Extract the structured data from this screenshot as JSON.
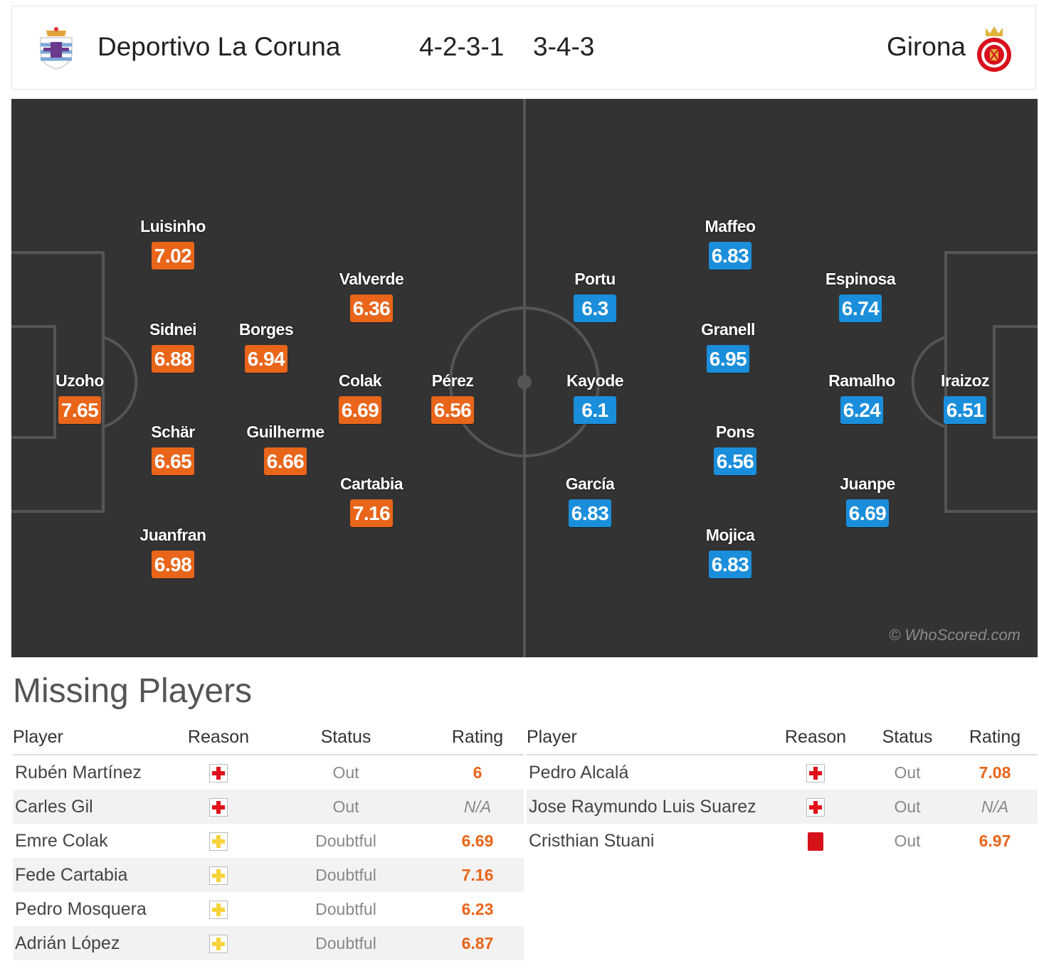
{
  "header": {
    "home_team": "Deportivo La Coruna",
    "home_formation": "4-2-3-1",
    "away_formation": "3-4-3",
    "away_team": "Girona"
  },
  "pitch": {
    "watermark": "© WhoScored.com",
    "home_players": [
      {
        "name": "Uzoho",
        "rating": "7.65"
      },
      {
        "name": "Luisinho",
        "rating": "7.02"
      },
      {
        "name": "Sidnei",
        "rating": "6.88"
      },
      {
        "name": "Schär",
        "rating": "6.65"
      },
      {
        "name": "Juanfran",
        "rating": "6.98"
      },
      {
        "name": "Borges",
        "rating": "6.94"
      },
      {
        "name": "Guilherme",
        "rating": "6.66"
      },
      {
        "name": "Valverde",
        "rating": "6.36"
      },
      {
        "name": "Colak",
        "rating": "6.69"
      },
      {
        "name": "Cartabia",
        "rating": "7.16"
      },
      {
        "name": "Pérez",
        "rating": "6.56"
      }
    ],
    "away_players": [
      {
        "name": "Portu",
        "rating": "6.3"
      },
      {
        "name": "Kayode",
        "rating": "6.1"
      },
      {
        "name": "García",
        "rating": "6.83"
      },
      {
        "name": "Maffeo",
        "rating": "6.83"
      },
      {
        "name": "Granell",
        "rating": "6.95"
      },
      {
        "name": "Pons",
        "rating": "6.56"
      },
      {
        "name": "Mojica",
        "rating": "6.83"
      },
      {
        "name": "Espinosa",
        "rating": "6.74"
      },
      {
        "name": "Ramalho",
        "rating": "6.24"
      },
      {
        "name": "Juanpe",
        "rating": "6.69"
      },
      {
        "name": "Iraizoz",
        "rating": "6.51"
      }
    ]
  },
  "missing": {
    "title": "Missing Players",
    "columns": {
      "player": "Player",
      "reason": "Reason",
      "status": "Status",
      "rating": "Rating"
    },
    "home": [
      {
        "player": "Rubén Martínez",
        "reason": "injury-icon",
        "status": "Out",
        "rating": "6"
      },
      {
        "player": "Carles Gil",
        "reason": "injury-icon",
        "status": "Out",
        "rating": "N/A"
      },
      {
        "player": "Emre Colak",
        "reason": "doubtful-icon",
        "status": "Doubtful",
        "rating": "6.69"
      },
      {
        "player": "Fede Cartabia",
        "reason": "doubtful-icon",
        "status": "Doubtful",
        "rating": "7.16"
      },
      {
        "player": "Pedro Mosquera",
        "reason": "doubtful-icon",
        "status": "Doubtful",
        "rating": "6.23"
      },
      {
        "player": "Adrián López",
        "reason": "doubtful-icon",
        "status": "Doubtful",
        "rating": "6.87"
      }
    ],
    "away": [
      {
        "player": "Pedro Alcalá",
        "reason": "injury-icon",
        "status": "Out",
        "rating": "7.08"
      },
      {
        "player": "Jose Raymundo Luis Suarez",
        "reason": "injury-icon",
        "status": "Out",
        "rating": "N/A"
      },
      {
        "player": "Cristhian Stuani",
        "reason": "red-card-icon",
        "status": "Out",
        "rating": "6.97"
      }
    ]
  },
  "colors": {
    "home": "#e8651a",
    "away": "#1a8edb",
    "pitch": "#333333"
  }
}
